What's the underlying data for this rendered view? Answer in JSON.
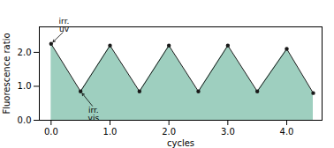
{
  "chart_data": {
    "type": "area",
    "title": "",
    "xlabel": "cycles",
    "ylabel": "Fluorescence ratio",
    "x": [
      0.0,
      0.5,
      1.0,
      1.5,
      2.0,
      2.5,
      3.0,
      3.5,
      4.0,
      4.45
    ],
    "series": [
      {
        "type": "area",
        "color": "#9ecfbf",
        "values": [
          2.25,
          0.85,
          2.2,
          0.85,
          2.2,
          0.85,
          2.2,
          0.85,
          2.1,
          0.8
        ]
      },
      {
        "type": "line",
        "color": "#1a1a1a",
        "marker": "circle",
        "values": [
          2.25,
          0.85,
          2.2,
          0.85,
          2.2,
          0.85,
          2.2,
          0.85,
          2.1,
          0.8
        ]
      }
    ],
    "annotations": [
      {
        "text": "irr.\nuv",
        "x": 0.0,
        "y": 2.25,
        "text_x": 0.22,
        "text_y": 2.62
      },
      {
        "text": "irr.\nvis",
        "x": 0.5,
        "y": 0.85,
        "text_x": 0.72,
        "text_y": 0.38
      }
    ],
    "xlim": [
      -0.2,
      4.6
    ],
    "ylim": [
      0,
      2.75
    ],
    "xticks": [
      0,
      1,
      2,
      3,
      4
    ],
    "yticks": [
      0,
      1,
      2
    ]
  }
}
